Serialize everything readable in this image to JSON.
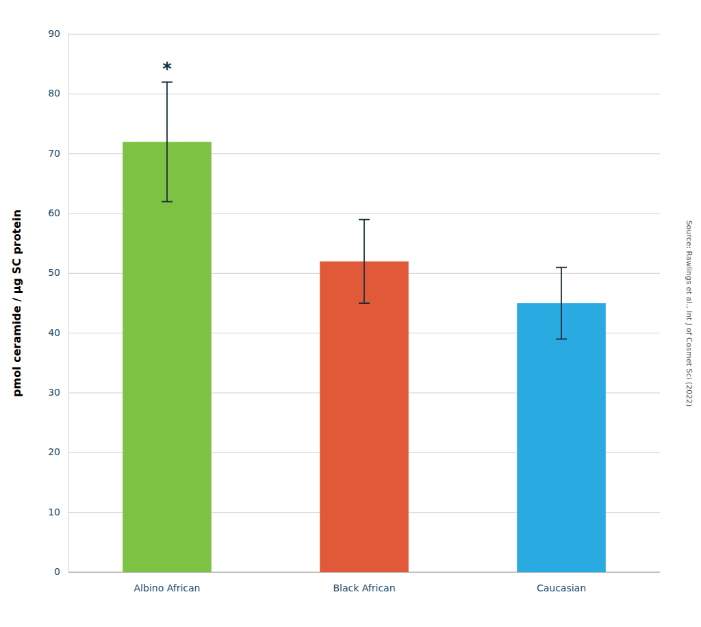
{
  "chart_data": {
    "type": "bar",
    "categories": [
      "Albino African",
      "Black African",
      "Caucasian"
    ],
    "values": [
      72,
      52,
      45
    ],
    "errors": [
      10,
      7,
      6
    ],
    "colors": [
      "#7DC242",
      "#E05A3A",
      "#29ABE2"
    ],
    "ylabel": "pmol ceramide / μg SC protein",
    "ylim": [
      0,
      90
    ],
    "yticks": [
      0,
      10,
      20,
      30,
      40,
      50,
      60,
      70,
      80,
      90
    ],
    "grid": true,
    "annotations": [
      {
        "text": "*",
        "category": "Albino African"
      }
    ],
    "source": "Source: Rawlings et al., Int J of Cosmet Sci (2022)"
  }
}
